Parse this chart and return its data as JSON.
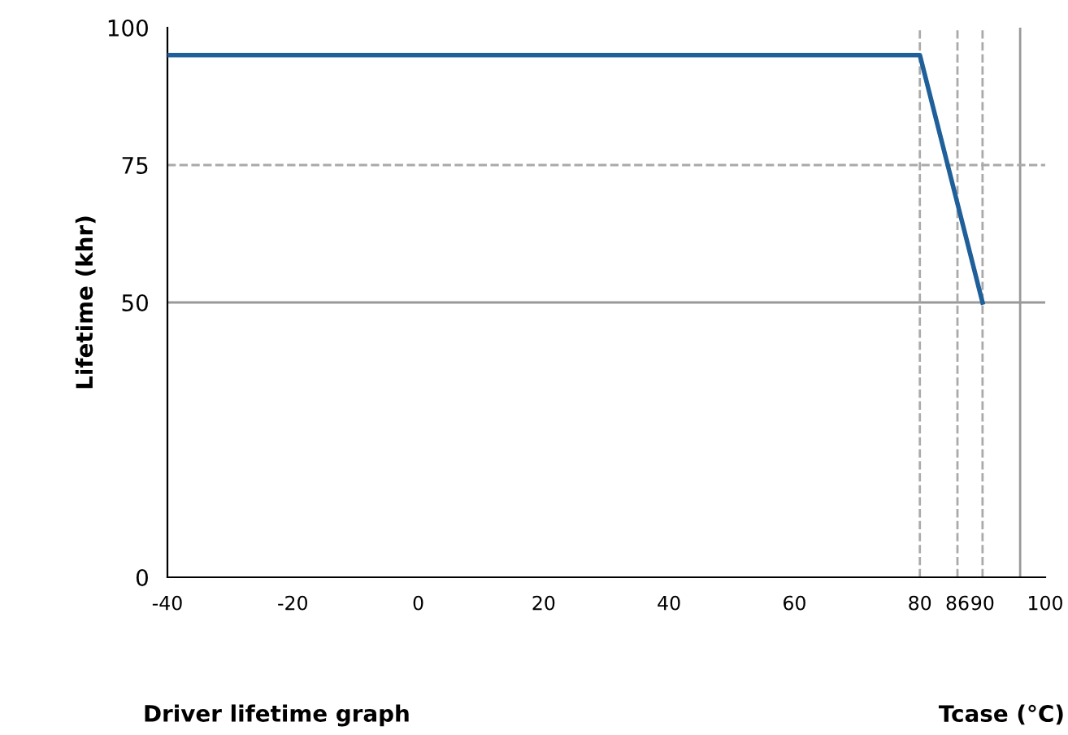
{
  "chart_data": {
    "type": "line",
    "xlabel": "Tcase (°C)",
    "ylabel": "Lifetime (khr)",
    "annotations": [
      "Driver lifetime graph"
    ],
    "x": [
      -40,
      80,
      90
    ],
    "series": [
      {
        "color": "#1f5f9a",
        "values": [
          95,
          95,
          50
        ]
      }
    ],
    "xlim": [
      -40,
      100
    ],
    "ylim": [
      0,
      100
    ],
    "xticks": [
      -40,
      -20,
      0,
      20,
      40,
      60,
      80,
      86,
      90,
      100
    ],
    "yticks": [
      0,
      50,
      75,
      100
    ],
    "ref_lines": [
      {
        "axis": "y",
        "value": 50,
        "color": "#999999",
        "line_style": "solid"
      },
      {
        "axis": "x",
        "value": 96,
        "color": "#999999",
        "line_style": "solid"
      },
      {
        "axis": "y",
        "value": 75,
        "color": "#aaaaaa",
        "line_style": "dashed"
      },
      {
        "axis": "x",
        "value": 80,
        "color": "#aaaaaa",
        "line_style": "dashed"
      },
      {
        "axis": "x",
        "value": 86,
        "color": "#aaaaaa",
        "line_style": "dashed"
      },
      {
        "axis": "x",
        "value": 90,
        "color": "#aaaaaa",
        "line_style": "dashed"
      }
    ],
    "grid": false,
    "legend": false,
    "marker": "none",
    "line_style": "solid"
  }
}
